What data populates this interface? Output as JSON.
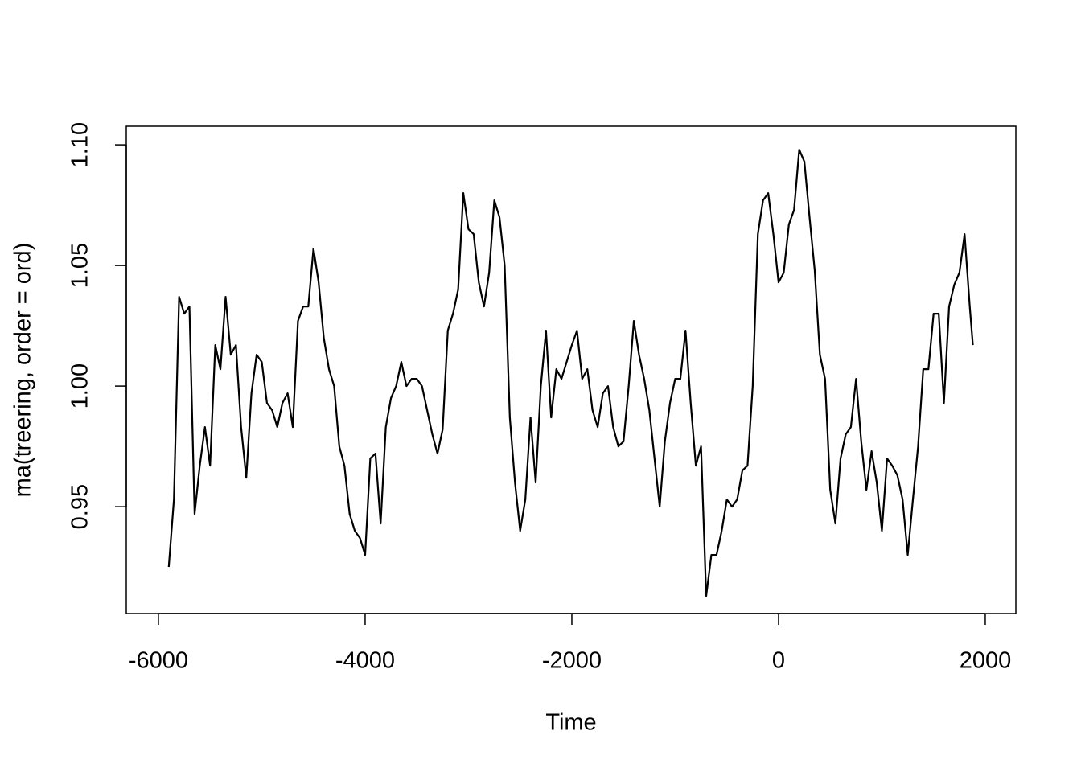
{
  "chart_data": {
    "type": "line",
    "xlabel": "Time",
    "ylabel": "ma(treering, order = ord)",
    "xlim": [
      -6311,
      2296
    ],
    "ylim": [
      0.9057,
      1.1077
    ],
    "xticks": [
      -6000,
      -4000,
      -2000,
      0,
      2000
    ],
    "yticks": [
      0.95,
      {
        "value": 1.0,
        "label": "1.00"
      },
      1.05,
      {
        "value": 1.1,
        "label": "1.10"
      }
    ],
    "color": "#000000",
    "x": [
      -5900,
      -5850,
      -5800,
      -5750,
      -5700,
      -5650,
      -5600,
      -5550,
      -5500,
      -5450,
      -5400,
      -5350,
      -5300,
      -5250,
      -5200,
      -5150,
      -5100,
      -5050,
      -5000,
      -4950,
      -4900,
      -4850,
      -4800,
      -4750,
      -4700,
      -4650,
      -4600,
      -4550,
      -4500,
      -4450,
      -4400,
      -4350,
      -4300,
      -4250,
      -4200,
      -4150,
      -4100,
      -4050,
      -4000,
      -3950,
      -3900,
      -3850,
      -3800,
      -3750,
      -3700,
      -3650,
      -3600,
      -3550,
      -3500,
      -3450,
      -3400,
      -3350,
      -3300,
      -3250,
      -3200,
      -3150,
      -3100,
      -3050,
      -3000,
      -2950,
      -2900,
      -2850,
      -2800,
      -2750,
      -2700,
      -2650,
      -2600,
      -2550,
      -2500,
      -2450,
      -2400,
      -2350,
      -2300,
      -2250,
      -2200,
      -2150,
      -2100,
      -2050,
      -2000,
      -1950,
      -1900,
      -1850,
      -1800,
      -1750,
      -1700,
      -1650,
      -1600,
      -1550,
      -1500,
      -1450,
      -1400,
      -1350,
      -1300,
      -1250,
      -1200,
      -1150,
      -1100,
      -1050,
      -1000,
      -950,
      -900,
      -850,
      -800,
      -750,
      -700,
      -650,
      -600,
      -550,
      -500,
      -450,
      -400,
      -350,
      -300,
      -250,
      -200,
      -150,
      -100,
      -50,
      0,
      50,
      100,
      150,
      200,
      250,
      300,
      350,
      400,
      450,
      500,
      550,
      600,
      650,
      700,
      750,
      800,
      850,
      900,
      950,
      1000,
      1050,
      1100,
      1150,
      1200,
      1250,
      1300,
      1350,
      1400,
      1450,
      1500,
      1550,
      1600,
      1650,
      1700,
      1750,
      1800,
      1850,
      1880
    ],
    "values": [
      0.925,
      0.953,
      1.037,
      1.03,
      1.033,
      0.947,
      0.967,
      0.983,
      0.967,
      1.017,
      1.007,
      1.037,
      1.013,
      1.017,
      0.983,
      0.962,
      0.997,
      1.013,
      1.01,
      0.993,
      0.99,
      0.983,
      0.993,
      0.997,
      0.983,
      1.027,
      1.033,
      1.033,
      1.057,
      1.043,
      1.02,
      1.007,
      1.0,
      0.975,
      0.967,
      0.947,
      0.94,
      0.937,
      0.93,
      0.97,
      0.972,
      0.943,
      0.983,
      0.995,
      1.0,
      1.01,
      1.0,
      1.003,
      1.003,
      1.0,
      0.99,
      0.98,
      0.972,
      0.982,
      1.023,
      1.03,
      1.04,
      1.08,
      1.065,
      1.063,
      1.043,
      1.033,
      1.047,
      1.077,
      1.07,
      1.05,
      0.987,
      0.96,
      0.94,
      0.953,
      0.987,
      0.96,
      1.0,
      1.023,
      0.987,
      1.007,
      1.003,
      1.01,
      1.017,
      1.023,
      1.003,
      1.007,
      0.99,
      0.983,
      0.997,
      1.0,
      0.983,
      0.975,
      0.977,
      1.0,
      1.027,
      1.013,
      1.003,
      0.99,
      0.97,
      0.95,
      0.977,
      0.993,
      1.003,
      1.003,
      1.023,
      0.993,
      0.967,
      0.975,
      0.913,
      0.93,
      0.93,
      0.94,
      0.953,
      0.95,
      0.953,
      0.965,
      0.967,
      1.0,
      1.063,
      1.077,
      1.08,
      1.063,
      1.043,
      1.047,
      1.067,
      1.073,
      1.098,
      1.093,
      1.07,
      1.048,
      1.013,
      1.003,
      0.957,
      0.943,
      0.97,
      0.98,
      0.983,
      1.003,
      0.977,
      0.957,
      0.973,
      0.96,
      0.94,
      0.97,
      0.967,
      0.963,
      0.953,
      0.93,
      0.953,
      0.975,
      1.007,
      1.007,
      1.03,
      1.03,
      0.993,
      1.033,
      1.042,
      1.047,
      1.063,
      1.033,
      1.017
    ]
  }
}
